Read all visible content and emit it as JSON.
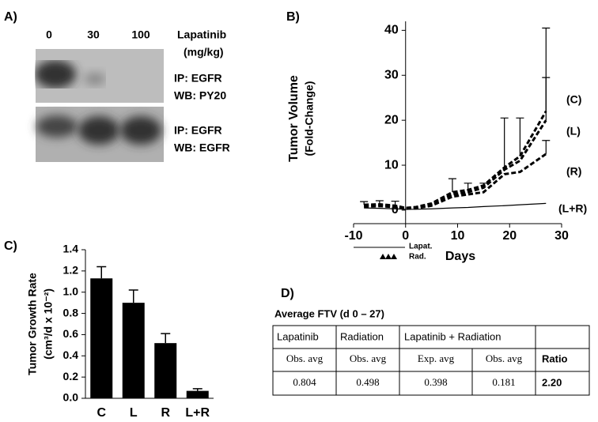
{
  "panel_a": {
    "label": "A)",
    "doses": [
      "0",
      "30",
      "100"
    ],
    "dose_title": [
      "Lapatinib",
      "(mg/kg)"
    ],
    "blots": [
      [
        "IP: EGFR",
        "WB: PY20"
      ],
      [
        "IP: EGFR",
        "WB: EGFR"
      ]
    ]
  },
  "chart_data": [
    {
      "type": "line",
      "panel_label": "B)",
      "ylabel": [
        "Tumor Volume",
        "(Fold-Change)"
      ],
      "xlabel": "Days",
      "x": [
        -8,
        -5,
        -2,
        0,
        2,
        5,
        9,
        12,
        15,
        19,
        22,
        27
      ],
      "series": [
        {
          "name": "(C)",
          "color": "#000000",
          "style": "dashed",
          "values": [
            1.2,
            1.3,
            1.0,
            0.5,
            0.7,
            1.5,
            4.0,
            4.5,
            5.5,
            9.5,
            12,
            22
          ],
          "errors": [
            0.7,
            0.8,
            1.0,
            null,
            null,
            null,
            3,
            1.5,
            0.5,
            11,
            8.5,
            18.5
          ]
        },
        {
          "name": "(L)",
          "color": "#000000",
          "style": "dashed",
          "values": [
            1.0,
            1.1,
            0.9,
            0.4,
            0.6,
            1.2,
            3.5,
            4,
            5,
            9,
            11,
            20
          ],
          "errors": [
            null,
            null,
            null,
            null,
            null,
            null,
            null,
            null,
            null,
            null,
            null,
            9.5
          ]
        },
        {
          "name": "(R)",
          "color": "#000000",
          "style": "dashed",
          "values": [
            0.8,
            0.9,
            0.7,
            0.3,
            0.4,
            1,
            3,
            3.5,
            4,
            8,
            8.5,
            12.5
          ],
          "errors": [
            null,
            null,
            null,
            null,
            null,
            null,
            null,
            null,
            null,
            null,
            null,
            3
          ]
        },
        {
          "name": "(L+R)",
          "color": "#000000",
          "style": "solid",
          "values": [
            0.5,
            0.4,
            0.3,
            0.2,
            0.2,
            0.3,
            0.5,
            0.6,
            0.8,
            1.0,
            1.2,
            1.5
          ],
          "errors": [
            null,
            null,
            null,
            null,
            null,
            null,
            null,
            null,
            null,
            null,
            null,
            null
          ]
        }
      ],
      "xlim": [
        -10,
        30
      ],
      "xticks": [
        -10,
        0,
        10,
        20,
        30
      ],
      "ylim": [
        -3,
        42
      ],
      "yticks": [
        0,
        10,
        20,
        30,
        40
      ],
      "treatment_labels": [
        "Lapat.",
        "Rad."
      ]
    },
    {
      "type": "bar",
      "panel_label": "C)",
      "ylabel": [
        "Tumor Growth Rate",
        "(cm³/d x 10⁻²)"
      ],
      "categories": [
        "C",
        "L",
        "R",
        "L+R"
      ],
      "values": [
        1.13,
        0.9,
        0.52,
        0.07
      ],
      "errors": [
        0.11,
        0.12,
        0.09,
        0.02
      ],
      "color": "#000000",
      "ylim": [
        0,
        1.4
      ],
      "yticks": [
        {
          "value": 0,
          "label": "0.0"
        },
        0.2,
        0.4,
        0.6,
        0.8,
        {
          "value": 1,
          "label": "1.0"
        },
        1.2,
        1.4
      ]
    }
  ],
  "panel_d": {
    "label": "D)",
    "title": "Average FTV (d 0 – 27)",
    "table": {
      "header": [
        "Lapatinib",
        "Radiation",
        "Lapatinib + Radiation"
      ],
      "rows": [
        [
          "Obs. avg",
          "Obs. avg",
          "Exp. avg",
          "Obs. avg",
          "Ratio"
        ],
        [
          "0.804",
          "0.498",
          "0.398",
          "0.181",
          "2.20"
        ]
      ]
    }
  }
}
